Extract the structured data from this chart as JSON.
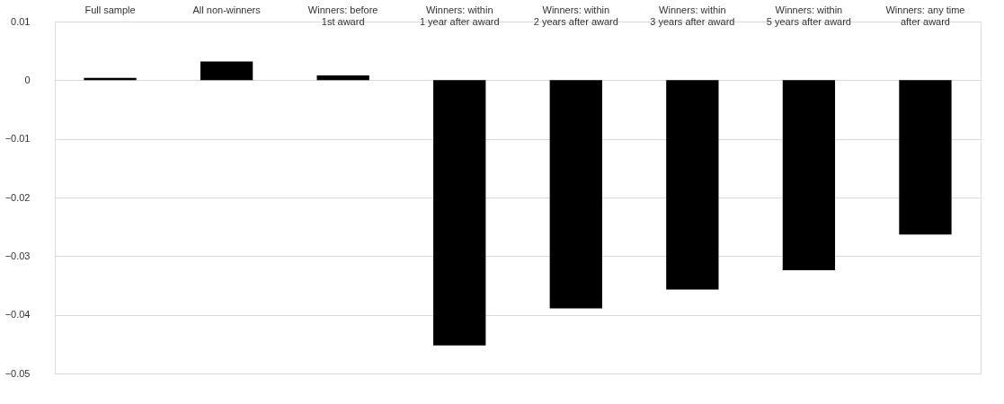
{
  "chart_data": {
    "type": "bar",
    "categories": [
      "Full sample",
      "All non-winners",
      "Winners: before\n1st award",
      "Winners: within\n1 year after award",
      "Winners: within\n2 years after award",
      "Winners: within\n3 years after award",
      "Winners: within\n5 years after award",
      "Winners: any time\nafter award"
    ],
    "values": [
      0.0004,
      0.0032,
      0.0008,
      -0.0452,
      -0.0389,
      -0.0357,
      -0.0324,
      -0.0263
    ],
    "color": "#000000",
    "ylim": [
      -0.05,
      0.01
    ],
    "yticks": [
      -0.05,
      -0.04,
      -0.03,
      -0.02,
      -0.01,
      0,
      0.01
    ],
    "grid": "y"
  }
}
